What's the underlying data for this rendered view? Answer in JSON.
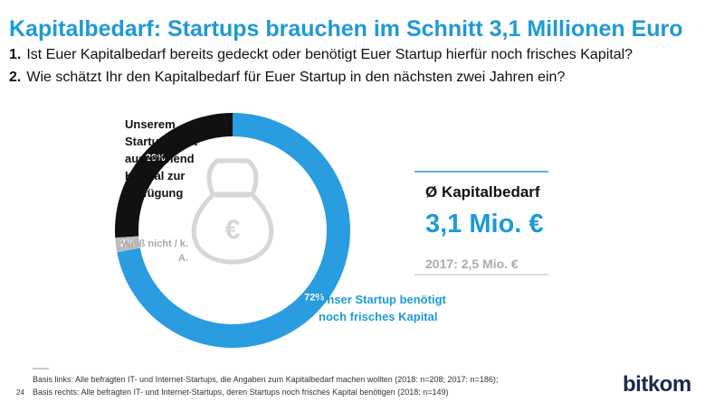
{
  "chart_data": {
    "type": "donut",
    "title": "Kapitalbedarf: Startups brauchen im Schnitt 3,1 Millionen Euro",
    "categories": [
      "Unserem Startup steht ausreichend Kapital zur Verfügung",
      "Weiß nicht / k. A.",
      "Unser Startup benötigt noch frisches Kapital"
    ],
    "values": [
      26,
      2,
      72
    ],
    "value_labels": [
      "26%",
      "2%",
      "72%"
    ],
    "colors": [
      "#111111",
      "#bdbdbd",
      "#2a9ce0"
    ]
  },
  "questions": [
    {
      "number": "1.",
      "text": "Ist Euer Kapitalbedarf bereits gedeckt oder benötigt Euer Startup hierfür noch frisches Kapital?"
    },
    {
      "number": "2.",
      "text": "Wie schätzt Ihr den Kapitalbedarf für Euer Startup in den nächsten zwei Jahren ein?"
    }
  ],
  "summary": {
    "heading": "Ø Kapitalbedarf",
    "value": "3,1 Mio. €",
    "previous": "2017: 2,5 Mio. €"
  },
  "footnotes": [
    "Basis links: Alle befragten IT- und Internet-Startups, die Angaben zum Kapitalbedarf machen wollten (2018: n=208; 2017: n=186);",
    "Basis rechts: Alle befragten IT- und Internet-Startups, deren Startups noch frisches Kapital benötigen (2018: n=149)"
  ],
  "page_number": "24",
  "logo": "bitkom"
}
